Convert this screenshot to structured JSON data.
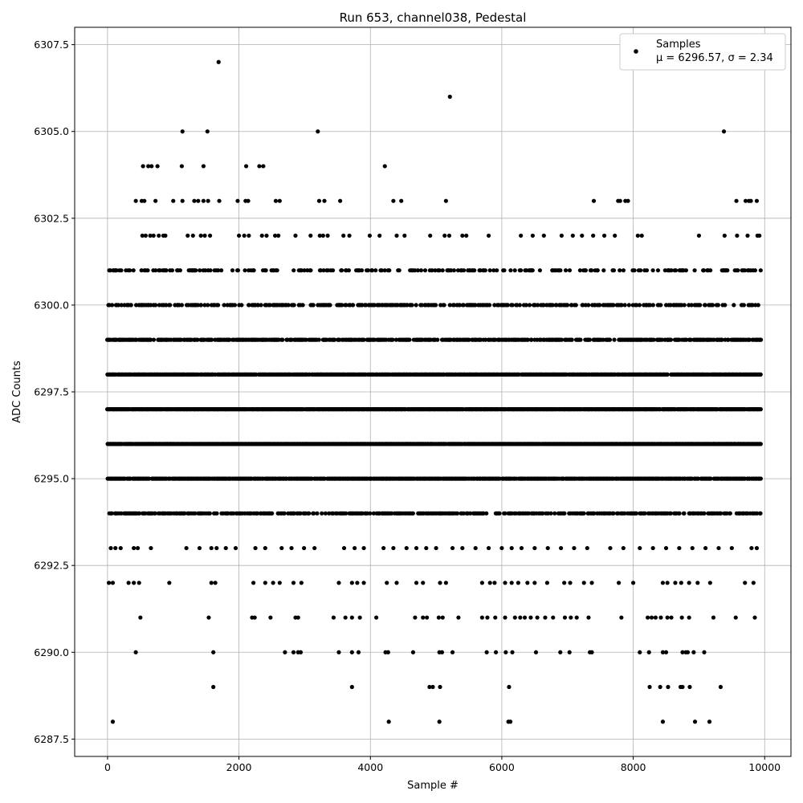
{
  "chart_data": {
    "type": "scatter",
    "title": "Run 653, channel038, Pedestal",
    "xlabel": "Sample #",
    "ylabel": "ADC Counts",
    "xlim": [
      -500,
      10400
    ],
    "ylim": [
      6287.0,
      6308.0
    ],
    "xticks": [
      0,
      2000,
      4000,
      6000,
      8000,
      10000
    ],
    "xtick_labels": [
      "0",
      "2000",
      "4000",
      "6000",
      "8000",
      "10000"
    ],
    "yticks": [
      6287.5,
      6290.0,
      6292.5,
      6295.0,
      6297.5,
      6300.0,
      6302.5,
      6305.0,
      6307.5
    ],
    "ytick_labels": [
      "6287.5",
      "6290.0",
      "6292.5",
      "6295.0",
      "6297.5",
      "6300.0",
      "6302.5",
      "6305.0",
      "6307.5"
    ],
    "grid": true,
    "legend_position": "top-right",
    "legend": {
      "name": "Samples",
      "stats": "μ = 6296.57, σ = 2.34"
    },
    "marker_color": "#000000",
    "series": [
      {
        "name": "Samples",
        "x_range": [
          0,
          9950
        ],
        "points": [
          [
            80,
            6288
          ],
          [
            4280,
            6288
          ],
          [
            5050,
            6288
          ],
          [
            6100,
            6288
          ],
          [
            6130,
            6288
          ],
          [
            8450,
            6288
          ],
          [
            8940,
            6288
          ],
          [
            9160,
            6288
          ],
          [
            1610,
            6289
          ],
          [
            3720,
            6289
          ],
          [
            4900,
            6289
          ],
          [
            4950,
            6289
          ],
          [
            5060,
            6289
          ],
          [
            6110,
            6289
          ],
          [
            8250,
            6289
          ],
          [
            8410,
            6289
          ],
          [
            8530,
            6289
          ],
          [
            8720,
            6289
          ],
          [
            8750,
            6289
          ],
          [
            8860,
            6289
          ],
          [
            9330,
            6289
          ],
          [
            430,
            6290
          ],
          [
            1610,
            6290
          ],
          [
            2700,
            6290
          ],
          [
            2830,
            6290
          ],
          [
            2900,
            6290
          ],
          [
            2940,
            6290
          ],
          [
            3520,
            6290
          ],
          [
            3720,
            6290
          ],
          [
            3820,
            6290
          ],
          [
            4230,
            6290
          ],
          [
            4270,
            6290
          ],
          [
            4650,
            6290
          ],
          [
            5050,
            6290
          ],
          [
            5090,
            6290
          ],
          [
            5250,
            6290
          ],
          [
            5770,
            6290
          ],
          [
            5910,
            6290
          ],
          [
            6060,
            6290
          ],
          [
            6160,
            6290
          ],
          [
            6520,
            6290
          ],
          [
            6890,
            6290
          ],
          [
            7030,
            6290
          ],
          [
            7340,
            6290
          ],
          [
            7370,
            6290
          ],
          [
            8100,
            6290
          ],
          [
            8240,
            6290
          ],
          [
            8450,
            6290
          ],
          [
            8500,
            6290
          ],
          [
            8750,
            6290
          ],
          [
            8800,
            6290
          ],
          [
            8830,
            6290
          ],
          [
            8920,
            6290
          ],
          [
            9080,
            6290
          ],
          [
            500,
            6291
          ],
          [
            1540,
            6291
          ],
          [
            2200,
            6291
          ],
          [
            2240,
            6291
          ],
          [
            2480,
            6291
          ],
          [
            2860,
            6291
          ],
          [
            2900,
            6291
          ],
          [
            3440,
            6291
          ],
          [
            3620,
            6291
          ],
          [
            3720,
            6291
          ],
          [
            3840,
            6291
          ],
          [
            4090,
            6291
          ],
          [
            4680,
            6291
          ],
          [
            4800,
            6291
          ],
          [
            4860,
            6291
          ],
          [
            5040,
            6291
          ],
          [
            5100,
            6291
          ],
          [
            5340,
            6291
          ],
          [
            5700,
            6291
          ],
          [
            5780,
            6291
          ],
          [
            5900,
            6291
          ],
          [
            6050,
            6291
          ],
          [
            6200,
            6291
          ],
          [
            6280,
            6291
          ],
          [
            6350,
            6291
          ],
          [
            6440,
            6291
          ],
          [
            6540,
            6291
          ],
          [
            6660,
            6291
          ],
          [
            6780,
            6291
          ],
          [
            6960,
            6291
          ],
          [
            7050,
            6291
          ],
          [
            7140,
            6291
          ],
          [
            7320,
            6291
          ],
          [
            7820,
            6291
          ],
          [
            8220,
            6291
          ],
          [
            8280,
            6291
          ],
          [
            8340,
            6291
          ],
          [
            8420,
            6291
          ],
          [
            8520,
            6291
          ],
          [
            8580,
            6291
          ],
          [
            8740,
            6291
          ],
          [
            8850,
            6291
          ],
          [
            9220,
            6291
          ],
          [
            9560,
            6291
          ],
          [
            9850,
            6291
          ],
          [
            20,
            6292
          ],
          [
            80,
            6292
          ],
          [
            320,
            6292
          ],
          [
            400,
            6292
          ],
          [
            480,
            6292
          ],
          [
            940,
            6292
          ],
          [
            1580,
            6292
          ],
          [
            1640,
            6292
          ],
          [
            2220,
            6292
          ],
          [
            2400,
            6292
          ],
          [
            2520,
            6292
          ],
          [
            2620,
            6292
          ],
          [
            2830,
            6292
          ],
          [
            2950,
            6292
          ],
          [
            3520,
            6292
          ],
          [
            3720,
            6292
          ],
          [
            3800,
            6292
          ],
          [
            3900,
            6292
          ],
          [
            4250,
            6292
          ],
          [
            4400,
            6292
          ],
          [
            4700,
            6292
          ],
          [
            4800,
            6292
          ],
          [
            5060,
            6292
          ],
          [
            5150,
            6292
          ],
          [
            5700,
            6292
          ],
          [
            5820,
            6292
          ],
          [
            5890,
            6292
          ],
          [
            6050,
            6292
          ],
          [
            6150,
            6292
          ],
          [
            6250,
            6292
          ],
          [
            6390,
            6292
          ],
          [
            6500,
            6292
          ],
          [
            6690,
            6292
          ],
          [
            6950,
            6292
          ],
          [
            7040,
            6292
          ],
          [
            7250,
            6292
          ],
          [
            7370,
            6292
          ],
          [
            7780,
            6292
          ],
          [
            8000,
            6292
          ],
          [
            8450,
            6292
          ],
          [
            8520,
            6292
          ],
          [
            8640,
            6292
          ],
          [
            8730,
            6292
          ],
          [
            8850,
            6292
          ],
          [
            8980,
            6292
          ],
          [
            9170,
            6292
          ],
          [
            9700,
            6292
          ],
          [
            9830,
            6292
          ],
          [
            50,
            6293
          ],
          [
            120,
            6293
          ],
          [
            200,
            6293
          ],
          [
            400,
            6293
          ],
          [
            460,
            6293
          ],
          [
            660,
            6293
          ],
          [
            1200,
            6293
          ],
          [
            1400,
            6293
          ],
          [
            1580,
            6293
          ],
          [
            1660,
            6293
          ],
          [
            1800,
            6293
          ],
          [
            1950,
            6293
          ],
          [
            2250,
            6293
          ],
          [
            2400,
            6293
          ],
          [
            2650,
            6293
          ],
          [
            2800,
            6293
          ],
          [
            2990,
            6293
          ],
          [
            3150,
            6293
          ],
          [
            3600,
            6293
          ],
          [
            3760,
            6293
          ],
          [
            3900,
            6293
          ],
          [
            4200,
            6293
          ],
          [
            4350,
            6293
          ],
          [
            4550,
            6293
          ],
          [
            4700,
            6293
          ],
          [
            4850,
            6293
          ],
          [
            5000,
            6293
          ],
          [
            5250,
            6293
          ],
          [
            5400,
            6293
          ],
          [
            5600,
            6293
          ],
          [
            5800,
            6293
          ],
          [
            6000,
            6293
          ],
          [
            6150,
            6293
          ],
          [
            6300,
            6293
          ],
          [
            6500,
            6293
          ],
          [
            6700,
            6293
          ],
          [
            6900,
            6293
          ],
          [
            7100,
            6293
          ],
          [
            7300,
            6293
          ],
          [
            7650,
            6293
          ],
          [
            7850,
            6293
          ],
          [
            8100,
            6293
          ],
          [
            8300,
            6293
          ],
          [
            8500,
            6293
          ],
          [
            8700,
            6293
          ],
          [
            8900,
            6293
          ],
          [
            9100,
            6293
          ],
          [
            9300,
            6293
          ],
          [
            9500,
            6293
          ],
          [
            9800,
            6293
          ],
          [
            9880,
            6293
          ],
          [
            430,
            6303
          ],
          [
            520,
            6303
          ],
          [
            560,
            6303
          ],
          [
            730,
            6303
          ],
          [
            1000,
            6303
          ],
          [
            1140,
            6303
          ],
          [
            1320,
            6303
          ],
          [
            1380,
            6303
          ],
          [
            1460,
            6303
          ],
          [
            1530,
            6303
          ],
          [
            1700,
            6303
          ],
          [
            1980,
            6303
          ],
          [
            2100,
            6303
          ],
          [
            2140,
            6303
          ],
          [
            2560,
            6303
          ],
          [
            2620,
            6303
          ],
          [
            3220,
            6303
          ],
          [
            3300,
            6303
          ],
          [
            3540,
            6303
          ],
          [
            4350,
            6303
          ],
          [
            4470,
            6303
          ],
          [
            5150,
            6303
          ],
          [
            7400,
            6303
          ],
          [
            7770,
            6303
          ],
          [
            7800,
            6303
          ],
          [
            7880,
            6303
          ],
          [
            7920,
            6303
          ],
          [
            9570,
            6303
          ],
          [
            9710,
            6303
          ],
          [
            9760,
            6303
          ],
          [
            9790,
            6303
          ],
          [
            9880,
            6303
          ],
          [
            530,
            6302
          ],
          [
            580,
            6302
          ],
          [
            650,
            6302
          ],
          [
            700,
            6302
          ],
          [
            780,
            6302
          ],
          [
            850,
            6302
          ],
          [
            880,
            6302
          ],
          [
            1220,
            6302
          ],
          [
            1300,
            6302
          ],
          [
            1420,
            6302
          ],
          [
            1480,
            6302
          ],
          [
            1560,
            6302
          ],
          [
            2000,
            6302
          ],
          [
            2080,
            6302
          ],
          [
            2150,
            6302
          ],
          [
            2350,
            6302
          ],
          [
            2420,
            6302
          ],
          [
            2550,
            6302
          ],
          [
            2600,
            6302
          ],
          [
            2860,
            6302
          ],
          [
            3090,
            6302
          ],
          [
            3230,
            6302
          ],
          [
            3280,
            6302
          ],
          [
            3350,
            6302
          ],
          [
            3590,
            6302
          ],
          [
            3680,
            6302
          ],
          [
            3990,
            6302
          ],
          [
            4140,
            6302
          ],
          [
            4400,
            6302
          ],
          [
            4520,
            6302
          ],
          [
            4910,
            6302
          ],
          [
            5130,
            6302
          ],
          [
            5200,
            6302
          ],
          [
            5400,
            6302
          ],
          [
            5460,
            6302
          ],
          [
            5800,
            6302
          ],
          [
            6290,
            6302
          ],
          [
            6470,
            6302
          ],
          [
            6640,
            6302
          ],
          [
            6910,
            6302
          ],
          [
            7080,
            6302
          ],
          [
            7220,
            6302
          ],
          [
            7390,
            6302
          ],
          [
            7560,
            6302
          ],
          [
            7720,
            6302
          ],
          [
            8070,
            6302
          ],
          [
            8130,
            6302
          ],
          [
            9000,
            6302
          ],
          [
            9390,
            6302
          ],
          [
            9580,
            6302
          ],
          [
            9740,
            6302
          ],
          [
            9890,
            6302
          ],
          [
            9920,
            6302
          ],
          [
            540,
            6304
          ],
          [
            620,
            6304
          ],
          [
            670,
            6304
          ],
          [
            760,
            6304
          ],
          [
            1130,
            6304
          ],
          [
            1460,
            6304
          ],
          [
            2110,
            6304
          ],
          [
            2310,
            6304
          ],
          [
            2370,
            6304
          ],
          [
            4220,
            6304
          ],
          [
            1140,
            6305
          ],
          [
            1520,
            6305
          ],
          [
            3200,
            6305
          ],
          [
            9380,
            6305
          ],
          [
            5210,
            6306
          ],
          [
            1690,
            6307
          ]
        ],
        "dense_levels": [
          {
            "y": 6294,
            "fill_fraction": 0.55
          },
          {
            "y": 6295,
            "fill_fraction": 0.9
          },
          {
            "y": 6296,
            "fill_fraction": 0.98
          },
          {
            "y": 6297,
            "fill_fraction": 0.98
          },
          {
            "y": 6298,
            "fill_fraction": 0.9
          },
          {
            "y": 6299,
            "fill_fraction": 0.65
          },
          {
            "y": 6300,
            "fill_fraction": 0.45
          },
          {
            "y": 6301,
            "fill_fraction": 0.3
          }
        ]
      }
    ]
  }
}
